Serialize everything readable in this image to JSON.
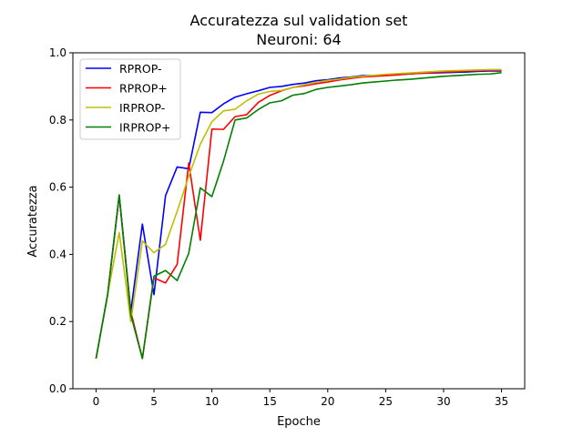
{
  "chart_data": {
    "type": "line",
    "title": "Accuratezza sul validation set",
    "subtitle": "Neuroni: 64",
    "xlabel": "Epoche",
    "ylabel": "Accuratezza",
    "xlim": [
      -2,
      37
    ],
    "ylim": [
      0,
      1
    ],
    "xticks": [
      0,
      5,
      10,
      15,
      20,
      25,
      30,
      35
    ],
    "yticks": [
      0.0,
      0.2,
      0.4,
      0.6,
      0.8,
      1.0
    ],
    "xtick_labels": [
      "0",
      "5",
      "10",
      "15",
      "20",
      "25",
      "30",
      "35"
    ],
    "ytick_labels": [
      "0.0",
      "0.2",
      "0.4",
      "0.6",
      "0.8",
      "1.0"
    ],
    "grid": false,
    "legend_position": "top-left",
    "x": [
      0,
      1,
      2,
      3,
      4,
      5,
      6,
      7,
      8,
      9,
      10,
      11,
      12,
      13,
      14,
      15,
      16,
      17,
      18,
      19,
      20,
      21,
      22,
      23,
      24,
      25,
      26,
      27,
      28,
      29,
      30,
      31,
      32,
      33,
      34,
      35
    ],
    "series": [
      {
        "name": "RPROP-",
        "color": "#0000ff",
        "values": [
          0.09,
          0.28,
          0.575,
          0.23,
          0.49,
          0.28,
          0.575,
          0.66,
          0.655,
          0.823,
          0.822,
          0.848,
          0.868,
          0.878,
          0.887,
          0.897,
          0.9,
          0.906,
          0.91,
          0.917,
          0.92,
          0.925,
          0.928,
          0.932,
          0.932,
          0.934,
          0.935,
          0.937,
          0.939,
          0.94,
          0.941,
          0.942,
          0.943,
          0.945,
          0.946,
          0.946
        ]
      },
      {
        "name": "RPROP+",
        "color": "#ff0000",
        "values": [
          0.09,
          0.28,
          0.575,
          0.23,
          0.09,
          0.33,
          0.315,
          0.37,
          0.672,
          0.442,
          0.773,
          0.772,
          0.81,
          0.816,
          0.852,
          0.873,
          0.887,
          0.897,
          0.902,
          0.908,
          0.913,
          0.919,
          0.924,
          0.928,
          0.93,
          0.932,
          0.934,
          0.937,
          0.939,
          0.941,
          0.943,
          0.944,
          0.946,
          0.947,
          0.948,
          0.948
        ]
      },
      {
        "name": "IRPROP-",
        "color": "#bfbf00",
        "values": [
          0.09,
          0.28,
          0.465,
          0.2,
          0.44,
          0.405,
          0.43,
          0.528,
          0.632,
          0.728,
          0.795,
          0.827,
          0.832,
          0.857,
          0.877,
          0.885,
          0.888,
          0.897,
          0.905,
          0.912,
          0.918,
          0.922,
          0.927,
          0.93,
          0.933,
          0.936,
          0.938,
          0.94,
          0.942,
          0.944,
          0.946,
          0.947,
          0.948,
          0.949,
          0.95,
          0.95
        ]
      },
      {
        "name": "IRPROP+",
        "color": "#008000",
        "values": [
          0.09,
          0.28,
          0.577,
          0.22,
          0.09,
          0.335,
          0.352,
          0.322,
          0.403,
          0.598,
          0.572,
          0.677,
          0.8,
          0.806,
          0.831,
          0.851,
          0.857,
          0.874,
          0.879,
          0.891,
          0.897,
          0.901,
          0.905,
          0.91,
          0.913,
          0.916,
          0.919,
          0.921,
          0.924,
          0.927,
          0.93,
          0.932,
          0.934,
          0.936,
          0.937,
          0.941
        ]
      }
    ]
  }
}
